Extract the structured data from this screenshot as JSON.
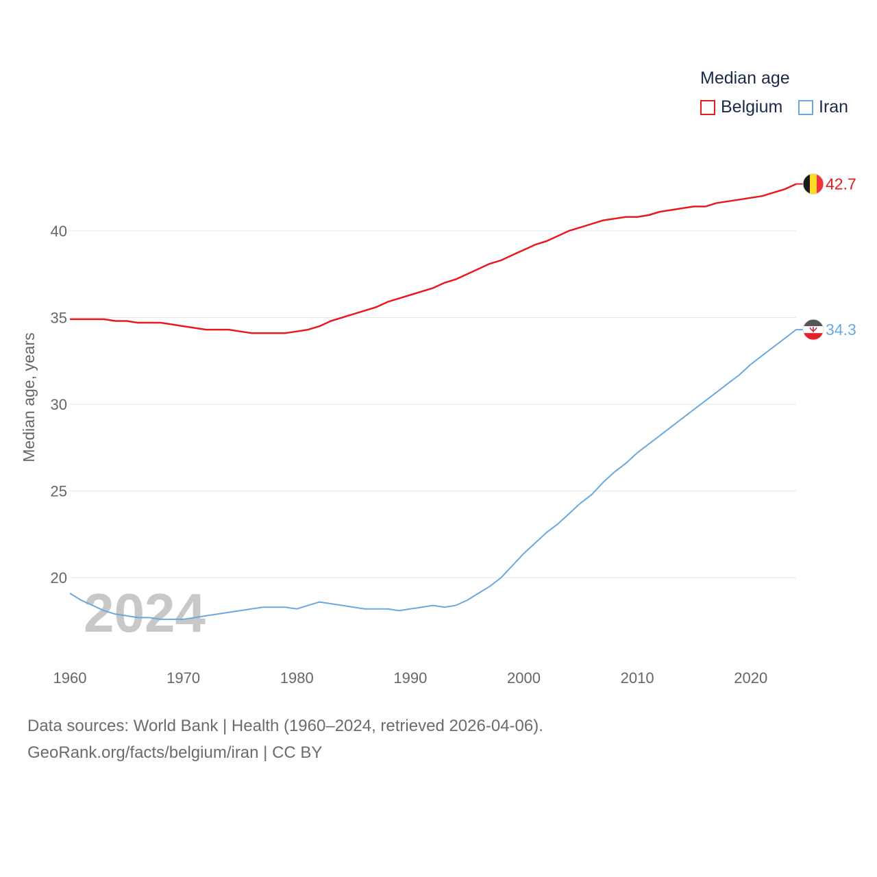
{
  "legend": {
    "title": "Median age",
    "items": [
      {
        "name": "Belgium",
        "color": "#e8191d"
      },
      {
        "name": "Iran",
        "color": "#6aa8e0"
      }
    ]
  },
  "source": {
    "line1": "Data sources: World Bank | Health (1960–2024, retrieved 2026-04-06).",
    "line2": "GeoRank.org/facts/belgium/iran | CC BY"
  },
  "chart_data": {
    "type": "line",
    "year_label": "2024",
    "ylabel": "Median age, years",
    "xlim": [
      1960,
      2024
    ],
    "ylim": [
      15.7,
      45.8
    ],
    "x_ticks": [
      1960,
      1970,
      1980,
      1990,
      2000,
      2010,
      2020
    ],
    "y_ticks": [
      20,
      25,
      30,
      35,
      40
    ],
    "x": [
      1960,
      1961,
      1962,
      1963,
      1964,
      1965,
      1966,
      1967,
      1968,
      1969,
      1970,
      1971,
      1972,
      1973,
      1974,
      1975,
      1976,
      1977,
      1978,
      1979,
      1980,
      1981,
      1982,
      1983,
      1984,
      1985,
      1986,
      1987,
      1988,
      1989,
      1990,
      1991,
      1992,
      1993,
      1994,
      1995,
      1996,
      1997,
      1998,
      1999,
      2000,
      2001,
      2002,
      2003,
      2004,
      2005,
      2006,
      2007,
      2008,
      2009,
      2010,
      2011,
      2012,
      2013,
      2014,
      2015,
      2016,
      2017,
      2018,
      2019,
      2020,
      2021,
      2022,
      2023,
      2024
    ],
    "series": [
      {
        "name": "Belgium",
        "color": "#e8191d",
        "end_label": "42.7",
        "values": [
          34.9,
          34.9,
          34.9,
          34.9,
          34.8,
          34.8,
          34.7,
          34.7,
          34.7,
          34.6,
          34.5,
          34.4,
          34.3,
          34.3,
          34.3,
          34.2,
          34.1,
          34.1,
          34.1,
          34.1,
          34.2,
          34.3,
          34.5,
          34.8,
          35.0,
          35.2,
          35.4,
          35.6,
          35.9,
          36.1,
          36.3,
          36.5,
          36.7,
          37.0,
          37.2,
          37.5,
          37.8,
          38.1,
          38.3,
          38.6,
          38.9,
          39.2,
          39.4,
          39.7,
          40.0,
          40.2,
          40.4,
          40.6,
          40.7,
          40.8,
          40.8,
          40.9,
          41.1,
          41.2,
          41.3,
          41.4,
          41.4,
          41.6,
          41.7,
          41.8,
          41.9,
          42.0,
          42.2,
          42.4,
          42.7
        ]
      },
      {
        "name": "Iran",
        "color": "#6aa8e0",
        "end_label": "34.3",
        "values": [
          19.1,
          18.7,
          18.4,
          18.1,
          17.9,
          17.8,
          17.7,
          17.7,
          17.6,
          17.6,
          17.6,
          17.7,
          17.8,
          17.9,
          18.0,
          18.1,
          18.2,
          18.3,
          18.3,
          18.3,
          18.2,
          18.4,
          18.6,
          18.5,
          18.4,
          18.3,
          18.2,
          18.2,
          18.2,
          18.1,
          18.2,
          18.3,
          18.4,
          18.3,
          18.4,
          18.7,
          19.1,
          19.5,
          20.0,
          20.7,
          21.4,
          22.0,
          22.6,
          23.1,
          23.7,
          24.3,
          24.8,
          25.5,
          26.1,
          26.6,
          27.2,
          27.7,
          28.2,
          28.7,
          29.2,
          29.7,
          30.2,
          30.7,
          31.2,
          31.7,
          32.3,
          32.8,
          33.3,
          33.8,
          34.3
        ]
      }
    ]
  }
}
